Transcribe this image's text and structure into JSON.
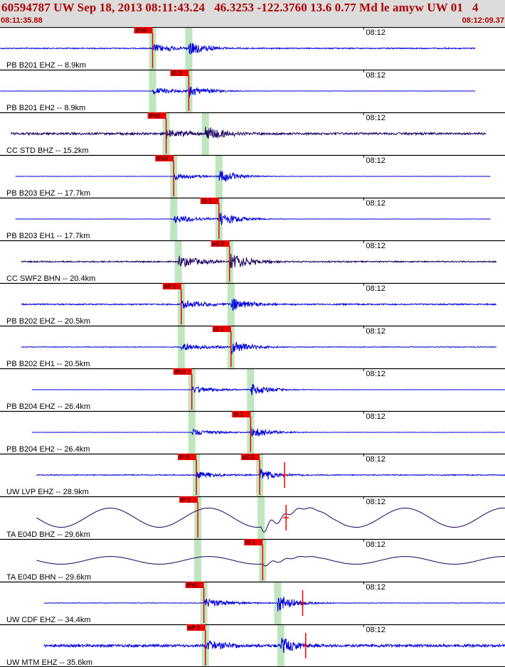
{
  "header": {
    "title": "60594787 UW Sep 18, 2013 08:11:43.24   46.3253 -122.3760 13.6 0.77 Md le amyw UW 01   4",
    "start_time": "08:11:35.88",
    "end_time": "08:12:09.37"
  },
  "colors": {
    "header_bg": "#dcdcdc",
    "header_text": "#b00000",
    "trace_blue": "#0000dd",
    "trace_dark": "#1a0060",
    "pick_red": "#ee0000",
    "pick_band": "#bfe6bf",
    "tick_line": "#000000"
  },
  "chart_data": {
    "type": "line",
    "title": "60594787 UW Sep 18, 2013 08:11:43.24   46.3253 -122.3760 13.6 0.77 Md le amyw UW 01   4",
    "x_start": "08:11:35.88",
    "x_end": "08:12:09.37",
    "minute_tick_label": "08:12",
    "minute_tick_time": "08:12:00.00",
    "series": [
      {
        "name": "PB B201 EHZ -- 8.9km",
        "trace_start": "08:11:35.9",
        "trace_end": "08:12:07.4",
        "p_time": "08:11:46.0",
        "s_time": "08:11:48.4",
        "pick_labels": [
          "iPc0"
        ],
        "dark": false,
        "amp": 0.3,
        "noise": 0.05,
        "long_period": false,
        "duration_marks": false
      },
      {
        "name": "PB B201 EH2 -- 8.9km",
        "trace_start": "08:11:35.9",
        "trace_end": "08:12:07.4",
        "p_time": "08:11:46.0",
        "s_time": "08:11:48.4",
        "pick_labels": [
          "iS 0"
        ],
        "dark": false,
        "amp": 0.25,
        "noise": 0.01,
        "long_period": false,
        "duration_marks": false
      },
      {
        "name": "CC STD BHZ -- 15.2km",
        "trace_start": "08:11:36.6",
        "trace_end": "08:12:08.1",
        "p_time": "08:11:46.9",
        "s_time": "08:11:49.5",
        "pick_labels": [
          "iPc0"
        ],
        "dark": true,
        "amp": 0.3,
        "noise": 0.1,
        "long_period": false,
        "duration_marks": false
      },
      {
        "name": "PB B203 EHZ -- 17.7km",
        "trace_start": "08:11:36.9",
        "trace_end": "08:12:08.4",
        "p_time": "08:11:47.4",
        "s_time": "08:11:50.4",
        "pick_labels": [
          "iPc0"
        ],
        "dark": false,
        "amp": 0.25,
        "noise": 0.01,
        "long_period": false,
        "duration_marks": false
      },
      {
        "name": "PB B203 EH1 -- 17.7km",
        "trace_start": "08:11:36.9",
        "trace_end": "08:12:08.4",
        "p_time": "08:11:47.4",
        "s_time": "08:11:50.4",
        "pick_labels": [
          "iS 1"
        ],
        "dark": false,
        "amp": 0.3,
        "noise": 0.01,
        "long_period": false,
        "duration_marks": false
      },
      {
        "name": "CC SWF2 BHN -- 20.4km",
        "trace_start": "08:11:37.3",
        "trace_end": "08:12:08.8",
        "p_time": "08:11:47.7",
        "s_time": "08:11:51.1",
        "pick_labels": [
          "eS 2"
        ],
        "dark": true,
        "amp": 0.4,
        "noise": 0.06,
        "long_period": false,
        "duration_marks": false
      },
      {
        "name": "PB B202 EHZ -- 20.5km",
        "trace_start": "08:11:37.3",
        "trace_end": "08:12:08.8",
        "p_time": "08:11:47.9",
        "s_time": "08:11:51.2",
        "pick_labels": [
          "eP 1"
        ],
        "dark": false,
        "amp": 0.3,
        "noise": 0.06,
        "long_period": false,
        "duration_marks": false
      },
      {
        "name": "PB B202 EH1 -- 20.5km",
        "trace_start": "08:11:37.3",
        "trace_end": "08:12:08.8",
        "p_time": "08:11:47.9",
        "s_time": "08:11:51.2",
        "pick_labels": [
          "iS 1"
        ],
        "dark": false,
        "amp": 0.3,
        "noise": 0.03,
        "long_period": false,
        "duration_marks": false
      },
      {
        "name": "PB B204 EHZ -- 26.4km",
        "trace_start": "08:11:38.0",
        "trace_end": "08:12:09.4",
        "p_time": "08:11:48.6",
        "s_time": "08:11:52.5",
        "pick_labels": [
          "iPc1"
        ],
        "dark": false,
        "amp": 0.25,
        "noise": 0.01,
        "long_period": false,
        "duration_marks": false
      },
      {
        "name": "PB B204 EH2 -- 26.4km",
        "trace_start": "08:11:38.0",
        "trace_end": "08:12:09.4",
        "p_time": "08:11:48.6",
        "s_time": "08:11:52.5",
        "pick_labels": [
          "iS 1"
        ],
        "dark": false,
        "amp": 0.25,
        "noise": 0.01,
        "long_period": false,
        "duration_marks": false
      },
      {
        "name": "UW LVP EHZ -- 28.9km",
        "trace_start": "08:11:38.3",
        "trace_end": "08:12:09.4",
        "p_time": "08:11:48.9",
        "s_time": "08:11:53.1",
        "pick_labels": [
          "iP 0",
          "eS 2"
        ],
        "dark": false,
        "amp": 0.25,
        "noise": 0.04,
        "long_period": false,
        "duration_marks": true
      },
      {
        "name": "TA E04D BHZ -- 29.6km",
        "trace_start": "08:11:38.3",
        "trace_end": "08:12:09.4",
        "p_time": "08:11:49.0",
        "s_time": "08:11:53.2",
        "pick_labels": [
          "iP 1"
        ],
        "dark": true,
        "amp": 0.5,
        "noise": 0.0,
        "long_period": true,
        "duration_marks": true
      },
      {
        "name": "TA E04D BHN -- 29.6km",
        "trace_start": "08:11:38.3",
        "trace_end": "08:12:09.4",
        "p_time": "08:11:49.0",
        "s_time": "08:11:53.3",
        "pick_labels": [
          "iS 1"
        ],
        "dark": true,
        "amp": 0.2,
        "noise": 0.0,
        "long_period": true,
        "duration_marks": false
      },
      {
        "name": "UW CDF EHZ -- 34.4km",
        "trace_start": "08:11:38.8",
        "trace_end": "08:12:09.4",
        "p_time": "08:11:49.4",
        "s_time": "08:11:54.3",
        "pick_labels": [
          "iPd1"
        ],
        "dark": false,
        "amp": 0.35,
        "noise": 0.02,
        "long_period": false,
        "duration_marks": true
      },
      {
        "name": "UW MTM EHZ -- 35.6km",
        "trace_start": "08:11:38.8",
        "trace_end": "08:12:09.4",
        "p_time": "08:11:49.5",
        "s_time": "08:11:54.5",
        "pick_labels": [
          "eP 2"
        ],
        "dark": false,
        "amp": 0.35,
        "noise": 0.12,
        "long_period": false,
        "duration_marks": true
      }
    ]
  }
}
